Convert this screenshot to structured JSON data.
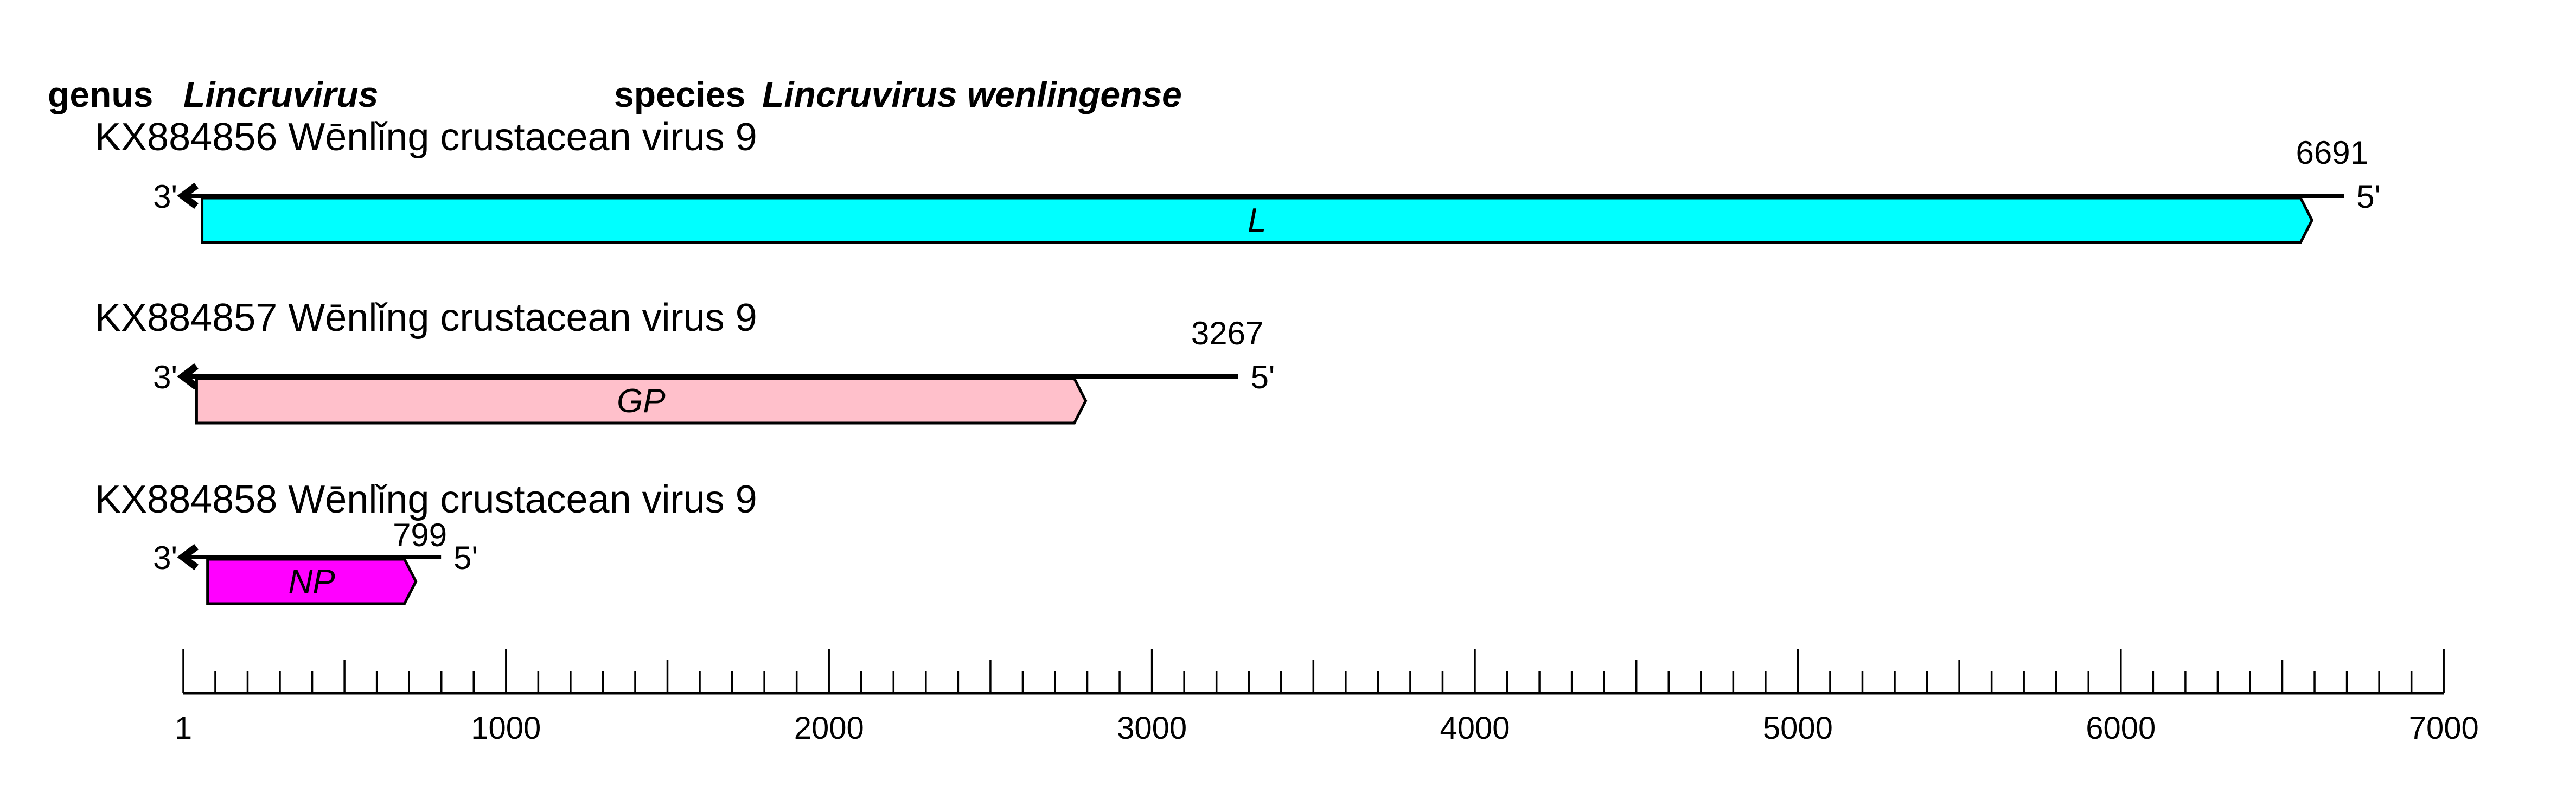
{
  "header": {
    "genus_label": "genus",
    "genus_name": "Lincruvirus",
    "species_label": "species",
    "species_name": "Lincruvirus wenlingense"
  },
  "segments": [
    {
      "accession": "KX884856",
      "virus_name": "Wēnlǐng crustacean virus 9",
      "title": "KX884856 Wēnlǐng crustacean virus 9",
      "length": 6691,
      "length_label": "6691",
      "three_prime_label": "3'",
      "five_prime_label": "5'",
      "genes": [
        {
          "name": "L",
          "start": 59,
          "end": 6592,
          "color": "#00FFFF"
        }
      ]
    },
    {
      "accession": "KX884857",
      "virus_name": "Wēnlǐng crustacean virus 9",
      "title": "KX884857 Wēnlǐng crustacean virus 9",
      "length": 3267,
      "length_label": "3267",
      "three_prime_label": "3'",
      "five_prime_label": "5'",
      "genes": [
        {
          "name": "GP",
          "start": 42,
          "end": 2795,
          "color": "#FFC0CB"
        }
      ]
    },
    {
      "accession": "KX884858",
      "virus_name": "Wēnlǐng crustacean virus 9",
      "title": "KX884858 Wēnlǐng crustacean virus 9",
      "length": 799,
      "length_label": "799",
      "three_prime_label": "3'",
      "five_prime_label": "5'",
      "genes": [
        {
          "name": "NP",
          "start": 76,
          "end": 721,
          "color": "#FF00FF"
        }
      ]
    }
  ],
  "scale_bar": {
    "min": 1,
    "max": 7000,
    "minor_step": 100,
    "medium_step": 500,
    "major_step": 1000,
    "tick_labels": [
      "1",
      "1000",
      "2000",
      "3000",
      "4000",
      "5000",
      "6000",
      "7000"
    ]
  },
  "colors": {
    "background": "#FFFFFF",
    "line": "#000000",
    "text": "#000000",
    "gene_L": "#00FFFF",
    "gene_GP": "#FFC0CB",
    "gene_NP": "#FF00FF"
  }
}
